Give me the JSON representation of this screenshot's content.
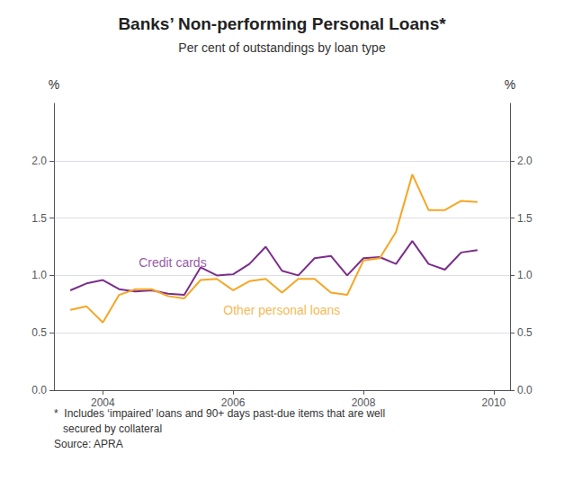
{
  "chart_data": {
    "type": "line",
    "title": "Banks’ Non-performing Personal Loans*",
    "subtitle": "Per cent of outstandings by loan type",
    "ylabel": "%",
    "y2label": "%",
    "footnotes": [
      "*  Includes ‘impaired’ loans and 90+ days past-due items that are well",
      "   secured by collateral",
      "Source: APRA"
    ],
    "x": [
      2003.5,
      2003.75,
      2004.0,
      2004.25,
      2004.5,
      2004.75,
      2005.0,
      2005.25,
      2005.5,
      2005.75,
      2006.0,
      2006.25,
      2006.5,
      2006.75,
      2007.0,
      2007.25,
      2007.5,
      2007.75,
      2008.0,
      2008.25,
      2008.5,
      2008.75,
      2009.0,
      2009.25,
      2009.5,
      2009.75
    ],
    "series": [
      {
        "color": "#7B2D8B",
        "values": [
          0.87,
          0.93,
          0.96,
          0.88,
          0.86,
          0.87,
          0.84,
          0.83,
          1.07,
          1.0,
          1.01,
          1.1,
          1.25,
          1.04,
          1.0,
          1.15,
          1.17,
          1.0,
          1.15,
          1.16,
          1.1,
          1.3,
          1.1,
          1.05,
          1.2,
          1.22
        ]
      },
      {
        "color": "#F5A623",
        "values": [
          0.7,
          0.73,
          0.59,
          0.83,
          0.88,
          0.88,
          0.82,
          0.8,
          0.96,
          0.97,
          0.87,
          0.95,
          0.97,
          0.85,
          0.97,
          0.97,
          0.85,
          0.83,
          1.13,
          1.15,
          1.38,
          1.88,
          1.57,
          1.57,
          1.65,
          1.64
        ]
      }
    ],
    "annotations": [
      {
        "text": "Credit cards",
        "x": 2004.55,
        "y": 1.11,
        "color": "#7B2D8B"
      },
      {
        "text": "Other personal loans",
        "x": 2005.85,
        "y": 0.7,
        "color": "#F5A623"
      }
    ],
    "xlim": [
      2003.25,
      2010.25
    ],
    "xticks": [
      2004,
      2006,
      2008,
      2010
    ],
    "ylim": [
      0.0,
      2.5
    ],
    "yticks": [
      {
        "value": 0.0,
        "label": "0.0"
      },
      0.5,
      {
        "value": 1.0,
        "label": "1.0"
      },
      1.5,
      {
        "value": 2.0,
        "label": "2.0"
      }
    ],
    "y2lim": [
      0.0,
      2.5
    ],
    "y2ticks": [
      {
        "value": 0.0,
        "label": "0.0"
      },
      0.5,
      {
        "value": 1.0,
        "label": "1.0"
      },
      1.5,
      {
        "value": 2.0,
        "label": "2.0"
      }
    ],
    "grid": true
  }
}
